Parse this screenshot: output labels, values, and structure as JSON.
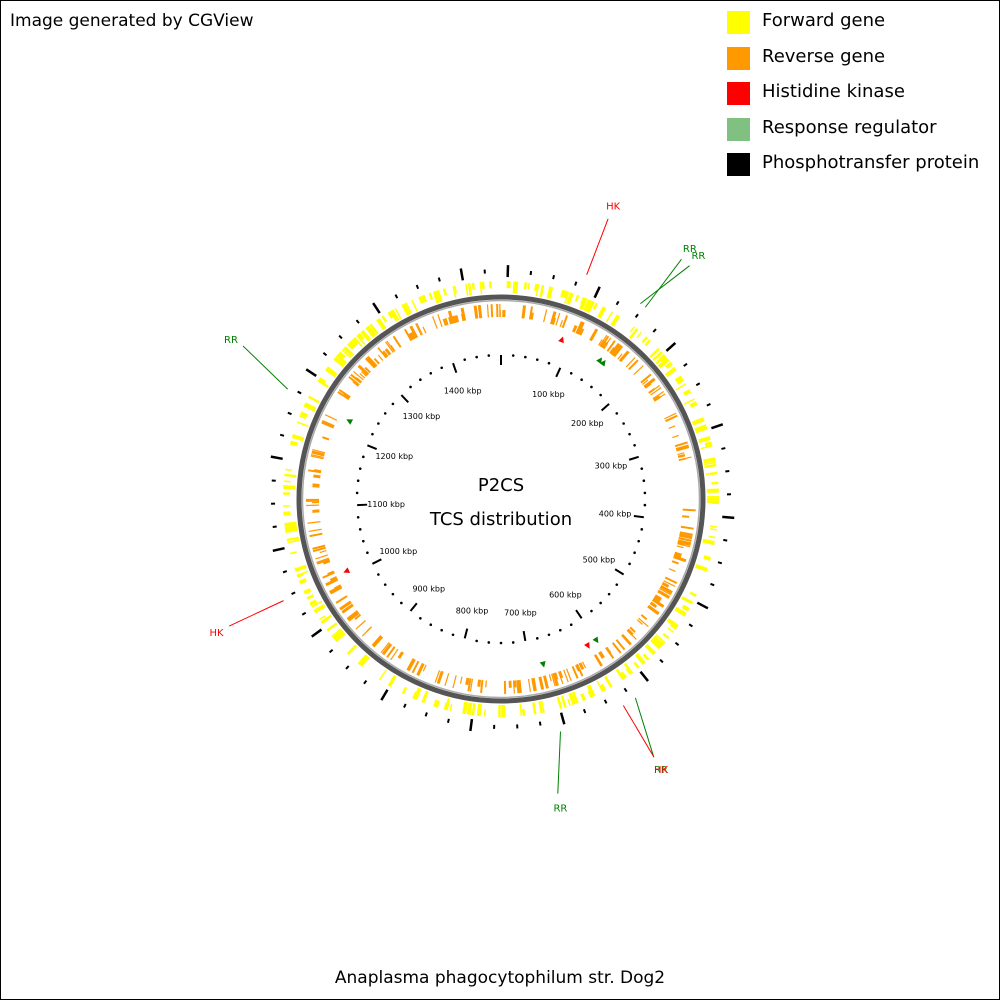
{
  "credit": "Image generated by CGView",
  "legend": [
    {
      "label": "Forward gene",
      "color": "#ffff00"
    },
    {
      "label": "Reverse gene",
      "color": "#ff9900"
    },
    {
      "label": "Histidine kinase",
      "color": "#ff0000"
    },
    {
      "label": "Response regulator",
      "color": "#80c080"
    },
    {
      "label": "Phosphotransfer protein",
      "color": "#000000"
    }
  ],
  "map": {
    "title_line1": "P2CS",
    "title_line2": "TCS distribution",
    "genome_size_kbp": 1480,
    "tick_labels": [
      "100 kbp",
      "200 kbp",
      "300 kbp",
      "400 kbp",
      "500 kbp",
      "600 kbp",
      "700 kbp",
      "800 kbp",
      "900 kbp",
      "1000 kbp",
      "1100 kbp",
      "1200 kbp",
      "1300 kbp",
      "1400 kbp"
    ],
    "features": [
      {
        "label": "HK",
        "type": "Histidine kinase",
        "position_kbp": 86,
        "label_color": "#ff0000",
        "marker_color": "#ff0000"
      },
      {
        "label": "RR",
        "type": "Response regulator",
        "position_kbp": 146,
        "label_color": "#008000",
        "marker_color": "#008000"
      },
      {
        "label": "RR",
        "type": "Response regulator",
        "position_kbp": 152,
        "label_color": "#008000",
        "marker_color": "#008000"
      },
      {
        "label": "RR",
        "type": "Response regulator",
        "position_kbp": 600,
        "label_color": "#008000",
        "marker_color": "#008000"
      },
      {
        "label": "HK",
        "type": "Histidine kinase",
        "position_kbp": 614,
        "label_color": "#ff0000",
        "marker_color": "#ff0000"
      },
      {
        "label": "RR",
        "type": "Response regulator",
        "position_kbp": 681,
        "label_color": "#008000",
        "marker_color": "#008000"
      },
      {
        "label": "HK",
        "type": "Histidine kinase",
        "position_kbp": 1007,
        "label_color": "#ff0000",
        "marker_color": "#ff0000"
      },
      {
        "label": "RR",
        "type": "Response regulator",
        "position_kbp": 1222,
        "label_color": "#008000",
        "marker_color": "#008000"
      }
    ]
  },
  "caption": "Anaplasma phagocytophilum str. Dog2"
}
